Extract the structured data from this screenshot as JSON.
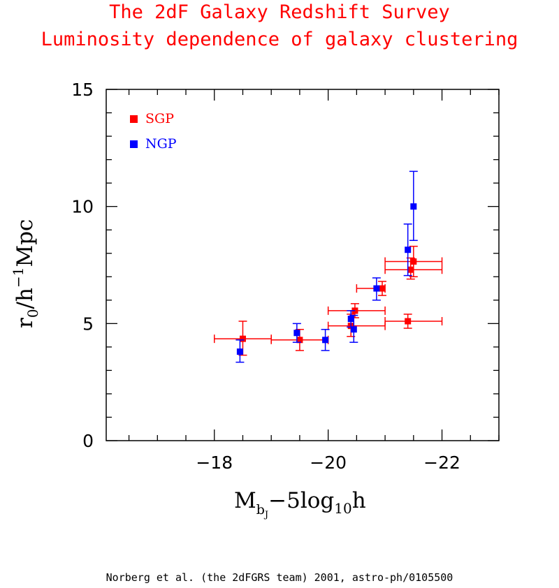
{
  "header": {
    "title_line1": "The 2dF Galaxy Redshift Survey",
    "title_line2": "Luminosity dependence of galaxy clustering"
  },
  "footer": {
    "credit": "Norberg et al. (the 2dFGRS team) 2001, astro-ph/0105500"
  },
  "chart_data": {
    "type": "scatter",
    "title": "The 2dF Galaxy Redshift Survey — Luminosity dependence of galaxy clustering",
    "xlabel": "M_bJ − 5log10 h",
    "ylabel": "r0 / h^-1 Mpc",
    "xlim": [
      -16.1,
      -23.0
    ],
    "ylim": [
      0,
      15
    ],
    "x_axis_reversed": true,
    "x_ticks": [
      -18,
      -20,
      -22
    ],
    "x_tick_labels": [
      "−18",
      "−20",
      "−22"
    ],
    "y_ticks": [
      0,
      5,
      10,
      15
    ],
    "y_tick_labels": [
      "0",
      "5",
      "10",
      "15"
    ],
    "grid": false,
    "legend_position": "top-left",
    "series": [
      {
        "name": "SGP",
        "color": "#ff0000",
        "points": [
          {
            "x": -18.5,
            "y": 4.35,
            "xerr_lo": -18.0,
            "xerr_hi": -19.0,
            "yerr_lo": 3.65,
            "yerr_hi": 5.1
          },
          {
            "x": -19.5,
            "y": 4.3,
            "xerr_lo": -19.0,
            "xerr_hi": -20.0,
            "yerr_lo": 3.85,
            "yerr_hi": 4.75
          },
          {
            "x": -20.4,
            "y": 4.9,
            "xerr_lo": -20.0,
            "xerr_hi": -21.0,
            "yerr_lo": 4.45,
            "yerr_hi": 5.4
          },
          {
            "x": -21.4,
            "y": 5.1,
            "xerr_lo": -21.0,
            "xerr_hi": -22.0,
            "yerr_lo": 4.8,
            "yerr_hi": 5.4
          },
          {
            "x": -20.47,
            "y": 5.55,
            "xerr_lo": -20.0,
            "xerr_hi": -21.0,
            "yerr_lo": 5.25,
            "yerr_hi": 5.85
          },
          {
            "x": -20.95,
            "y": 6.5,
            "xerr_lo": -20.5,
            "xerr_hi": -21.0,
            "yerr_lo": 6.2,
            "yerr_hi": 6.8
          },
          {
            "x": -21.45,
            "y": 7.3,
            "xerr_lo": -21.0,
            "xerr_hi": -22.0,
            "yerr_lo": 6.9,
            "yerr_hi": 7.8
          },
          {
            "x": -21.5,
            "y": 7.65,
            "xerr_lo": -21.0,
            "xerr_hi": -22.0,
            "yerr_lo": 7.0,
            "yerr_hi": 8.3
          }
        ]
      },
      {
        "name": "NGP",
        "color": "#0000ff",
        "points": [
          {
            "x": -18.45,
            "y": 3.8,
            "yerr_lo": 3.35,
            "yerr_hi": 4.3
          },
          {
            "x": -19.45,
            "y": 4.6,
            "yerr_lo": 4.2,
            "yerr_hi": 5.0
          },
          {
            "x": -19.95,
            "y": 4.3,
            "yerr_lo": 3.85,
            "yerr_hi": 4.75
          },
          {
            "x": -20.45,
            "y": 4.75,
            "yerr_lo": 4.2,
            "yerr_hi": 5.35
          },
          {
            "x": -20.4,
            "y": 5.2,
            "yerr_lo": 4.85,
            "yerr_hi": 5.55
          },
          {
            "x": -20.85,
            "y": 6.5,
            "yerr_lo": 6.0,
            "yerr_hi": 6.95
          },
          {
            "x": -21.4,
            "y": 8.15,
            "yerr_lo": 7.05,
            "yerr_hi": 9.25
          },
          {
            "x": -21.5,
            "y": 10.0,
            "yerr_lo": 8.55,
            "yerr_hi": 11.5
          }
        ]
      }
    ]
  }
}
